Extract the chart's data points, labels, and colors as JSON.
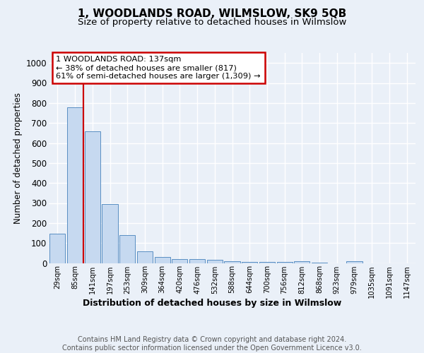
{
  "title": "1, WOODLANDS ROAD, WILMSLOW, SK9 5QB",
  "subtitle": "Size of property relative to detached houses in Wilmslow",
  "xlabel": "Distribution of detached houses by size in Wilmslow",
  "ylabel": "Number of detached properties",
  "bar_labels": [
    "29sqm",
    "85sqm",
    "141sqm",
    "197sqm",
    "253sqm",
    "309sqm",
    "364sqm",
    "420sqm",
    "476sqm",
    "532sqm",
    "588sqm",
    "644sqm",
    "700sqm",
    "756sqm",
    "812sqm",
    "868sqm",
    "923sqm",
    "979sqm",
    "1035sqm",
    "1091sqm",
    "1147sqm"
  ],
  "bar_values": [
    145,
    780,
    660,
    295,
    138,
    57,
    30,
    20,
    20,
    15,
    8,
    5,
    5,
    5,
    8,
    3,
    0,
    10,
    0,
    0,
    0
  ],
  "bar_color": "#c6d9f0",
  "bar_edge_color": "#5a8fc3",
  "vline_color": "#cc0000",
  "annotation_text": "1 WOODLANDS ROAD: 137sqm\n← 38% of detached houses are smaller (817)\n61% of semi-detached houses are larger (1,309) →",
  "annotation_box_color": "#ffffff",
  "annotation_box_edge_color": "#cc0000",
  "ylim": [
    0,
    1050
  ],
  "yticks": [
    0,
    100,
    200,
    300,
    400,
    500,
    600,
    700,
    800,
    900,
    1000
  ],
  "footer": "Contains HM Land Registry data © Crown copyright and database right 2024.\nContains public sector information licensed under the Open Government Licence v3.0.",
  "bg_color": "#eaf0f8",
  "plot_bg_color": "#eaf0f8",
  "grid_color": "#ffffff",
  "title_fontsize": 11,
  "subtitle_fontsize": 9.5,
  "footer_fontsize": 7.0
}
